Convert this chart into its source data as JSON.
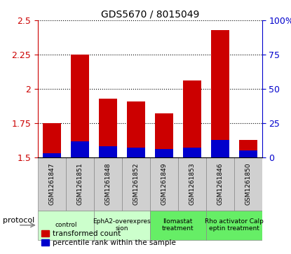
{
  "title": "GDS5670 / 8015049",
  "samples": [
    "GSM1261847",
    "GSM1261851",
    "GSM1261848",
    "GSM1261852",
    "GSM1261849",
    "GSM1261853",
    "GSM1261846",
    "GSM1261850"
  ],
  "transformed_counts": [
    1.75,
    2.25,
    1.93,
    1.91,
    1.82,
    2.06,
    2.43,
    1.63
  ],
  "percentile_ranks": [
    3,
    12,
    8,
    7,
    6,
    7,
    13,
    5
  ],
  "ylim_left": [
    1.5,
    2.5
  ],
  "yticks_left": [
    1.5,
    1.75,
    2.0,
    2.25,
    2.5
  ],
  "ytick_labels_left": [
    "1.5",
    "1.75",
    "2",
    "2.25",
    "2.5"
  ],
  "ylim_right": [
    0,
    100
  ],
  "yticks_right": [
    0,
    25,
    50,
    75,
    100
  ],
  "yticklabels_right": [
    "0",
    "25",
    "50",
    "75",
    "100%"
  ],
  "bar_color_red": "#cc0000",
  "bar_color_blue": "#0000cc",
  "bar_width": 0.65,
  "group_info": [
    {
      "start": 0,
      "end": 1,
      "label": "control",
      "color": "#ccffcc"
    },
    {
      "start": 2,
      "end": 3,
      "label": "EphA2-overexpres\nsion",
      "color": "#ccffcc"
    },
    {
      "start": 4,
      "end": 5,
      "label": "llomastat\ntreatment",
      "color": "#66ee66"
    },
    {
      "start": 6,
      "end": 7,
      "label": "Rho activator Calp\neptin treatment",
      "color": "#66ee66"
    }
  ],
  "color_left": "#cc0000",
  "color_right": "#0000cc",
  "sample_box_color": "#d0d0d0",
  "legend_red_label": "transformed count",
  "legend_blue_label": "percentile rank within the sample",
  "protocol_label": "protocol"
}
